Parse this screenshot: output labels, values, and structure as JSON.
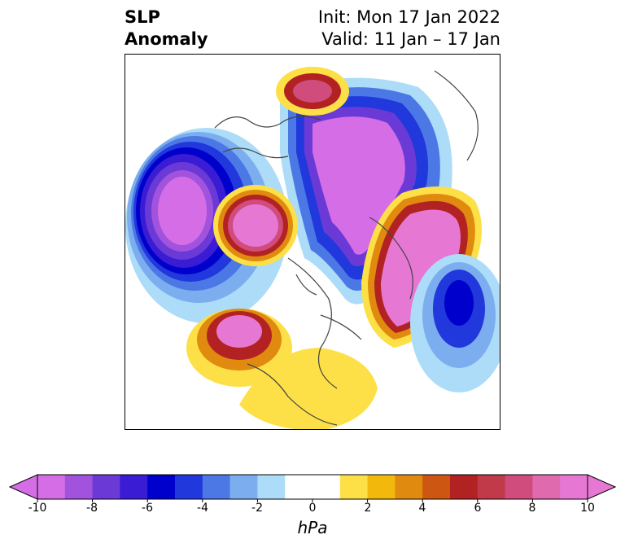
{
  "header": {
    "title_line1": "SLP",
    "title_line2": "Anomaly",
    "init_text": "Init: Mon 17 Jan 2022",
    "valid_text": "Valid: 11 Jan – 17 Jan"
  },
  "colorbar": {
    "unit": "hPa",
    "ticks": [
      "-10",
      "-8",
      "-6",
      "-4",
      "-2",
      "0",
      "2",
      "4",
      "6",
      "8",
      "10"
    ],
    "colors": [
      "#d56ee6",
      "#a153de",
      "#6b3ad6",
      "#3a1cd4",
      "#0000cc",
      "#2038dc",
      "#4c78e6",
      "#7caeef",
      "#acdcf8",
      "#ffffff",
      "#ffffff",
      "#fde047",
      "#f2b80c",
      "#e08a10",
      "#cc5612",
      "#b22222",
      "#c13a4a",
      "#cf4c7c",
      "#df6aae",
      "#e678d4"
    ]
  },
  "map": {
    "projection": "north-polar-stereographic",
    "field": "SLP anomaly",
    "notable_features": [
      "negative-anomaly-arctic-greenland",
      "negative-anomaly-north-pacific",
      "positive-anomaly-alaska-western-canada",
      "positive-anomaly-europe-scandinavia",
      "negative-anomaly-north-atlantic"
    ]
  }
}
